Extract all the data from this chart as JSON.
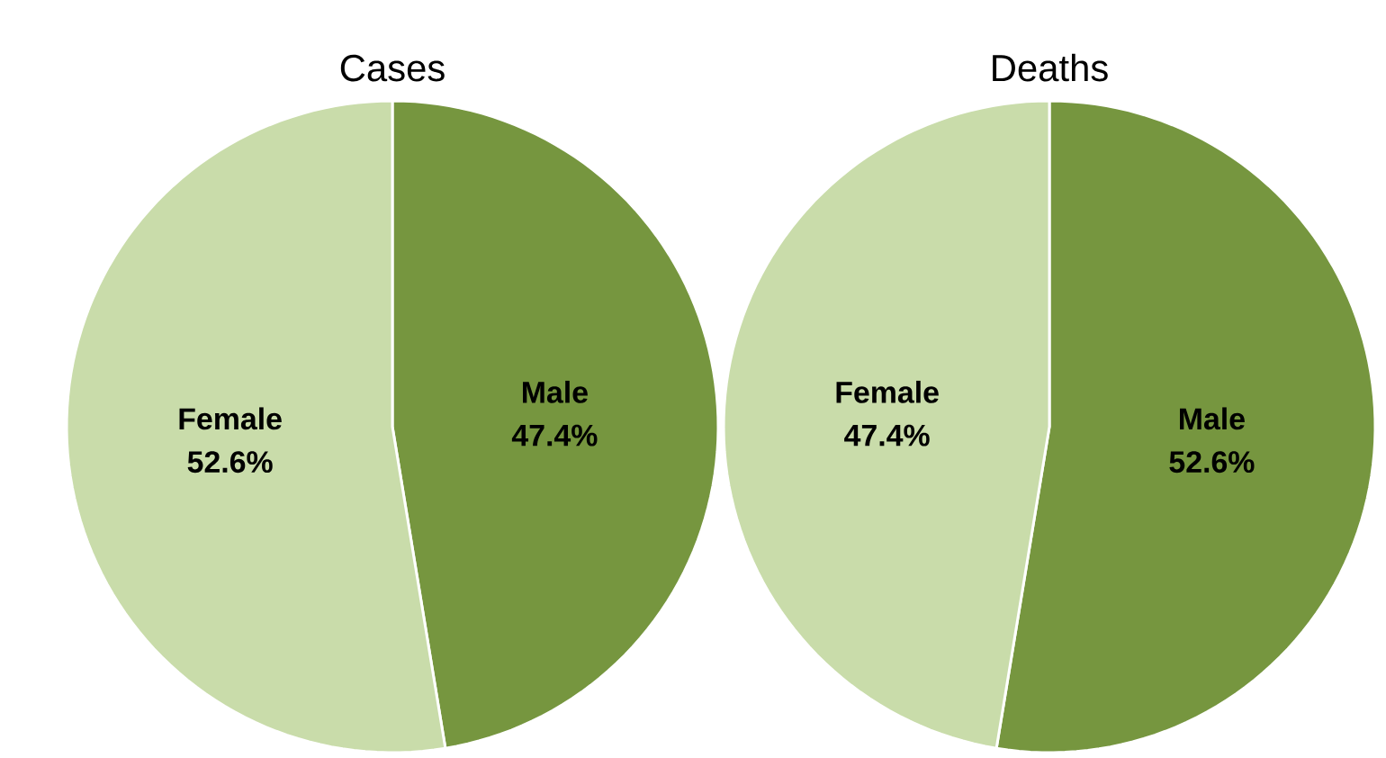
{
  "chart_data": [
    {
      "type": "pie",
      "title": "Cases",
      "categories": [
        "Male",
        "Female"
      ],
      "values": [
        47.4,
        52.6
      ],
      "colors": [
        "#76963f",
        "#c9dcaa"
      ],
      "value_labels": [
        "47.4%",
        "52.6%"
      ]
    },
    {
      "type": "pie",
      "title": "Deaths",
      "categories": [
        "Male",
        "Female"
      ],
      "values": [
        52.6,
        47.4
      ],
      "colors": [
        "#76963f",
        "#c9dcaa"
      ],
      "value_labels": [
        "52.6%",
        "47.4%"
      ]
    }
  ]
}
